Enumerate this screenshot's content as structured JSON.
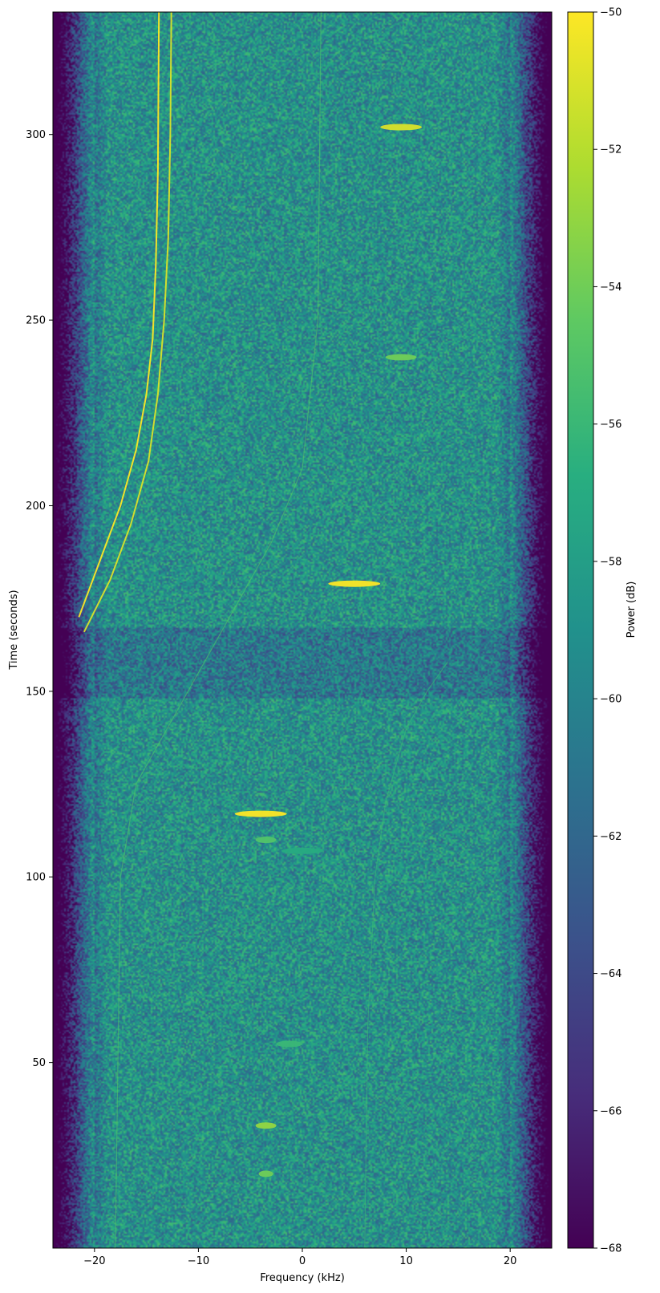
{
  "chart_data": {
    "type": "heatmap",
    "title": "",
    "xlabel": "Frequency (kHz)",
    "ylabel": "Time (seconds)",
    "xlim": [
      -24,
      24
    ],
    "ylim": [
      0,
      333
    ],
    "x_ticks": [
      -20,
      -10,
      0,
      10,
      20
    ],
    "x_tick_labels": [
      "−20",
      "−10",
      "0",
      "10",
      "20"
    ],
    "y_ticks": [
      50,
      100,
      150,
      200,
      250,
      300
    ],
    "y_tick_labels": [
      "50",
      "100",
      "150",
      "200",
      "250",
      "300"
    ],
    "grid": false,
    "colormap": "viridis",
    "colorbar": {
      "label": "Power (dB)",
      "range": [
        -68,
        -50
      ],
      "ticks": [
        -68,
        -66,
        -64,
        -62,
        -60,
        -58,
        -56,
        -54,
        -52,
        -50
      ],
      "tick_labels": [
        "−68",
        "−66",
        "−64",
        "−62",
        "−60",
        "−58",
        "−56",
        "−54",
        "−52",
        "−50"
      ]
    },
    "passband_khz": [
      -20,
      20
    ],
    "noise_floor_db": -59,
    "faded_band_seconds": [
      148,
      167
    ],
    "drifting_signals": [
      {
        "points": [
          [
            -21.5,
            170
          ],
          [
            -19.5,
            185
          ],
          [
            -17.5,
            200
          ],
          [
            -16,
            215
          ],
          [
            -15,
            230
          ],
          [
            -14.4,
            245
          ],
          [
            -14.1,
            265
          ],
          [
            -13.9,
            290
          ],
          [
            -13.8,
            333
          ]
        ],
        "power_db": -50
      },
      {
        "points": [
          [
            -21,
            166
          ],
          [
            -18.5,
            180
          ],
          [
            -16.5,
            195
          ],
          [
            -14.8,
            212
          ],
          [
            -13.9,
            230
          ],
          [
            -13.3,
            250
          ],
          [
            -12.9,
            272
          ],
          [
            -12.7,
            300
          ],
          [
            -12.6,
            333
          ]
        ],
        "power_db": -51
      },
      {
        "points": [
          [
            -18,
            0
          ],
          [
            -17.5,
            100
          ],
          [
            -16,
            125
          ],
          [
            -12,
            145
          ],
          [
            -6,
            175
          ],
          [
            -3,
            190
          ],
          [
            0,
            210
          ],
          [
            1.5,
            250
          ],
          [
            1.8,
            333
          ]
        ],
        "power_db": -55
      },
      {
        "points": [
          [
            6,
            0
          ],
          [
            6.3,
            60
          ],
          [
            7,
            100
          ],
          [
            8,
            120
          ],
          [
            10,
            140
          ],
          [
            12,
            150
          ],
          [
            14,
            158
          ]
        ],
        "power_db": -56
      }
    ],
    "bursts": [
      {
        "freq_khz": [
          -6.5,
          -1.5
        ],
        "time_s": 117,
        "power_db": -50
      },
      {
        "freq_khz": [
          2.5,
          7.5
        ],
        "time_s": 179,
        "power_db": -50
      },
      {
        "freq_khz": [
          7.5,
          11.5
        ],
        "time_s": 302,
        "power_db": -51
      },
      {
        "freq_khz": [
          8,
          11
        ],
        "time_s": 240,
        "power_db": -54
      },
      {
        "freq_khz": [
          -4.5,
          -2.5
        ],
        "time_s": 110,
        "power_db": -55
      },
      {
        "freq_khz": [
          -4.5,
          -2.5
        ],
        "time_s": 33,
        "power_db": -53
      },
      {
        "freq_khz": [
          -4.2,
          -2.8
        ],
        "time_s": 20,
        "power_db": -54
      },
      {
        "freq_khz": [
          -2.5,
          0
        ],
        "time_s": 55,
        "power_db": -56
      },
      {
        "freq_khz": [
          -2,
          2
        ],
        "time_s": 107,
        "power_db": -57
      }
    ]
  }
}
